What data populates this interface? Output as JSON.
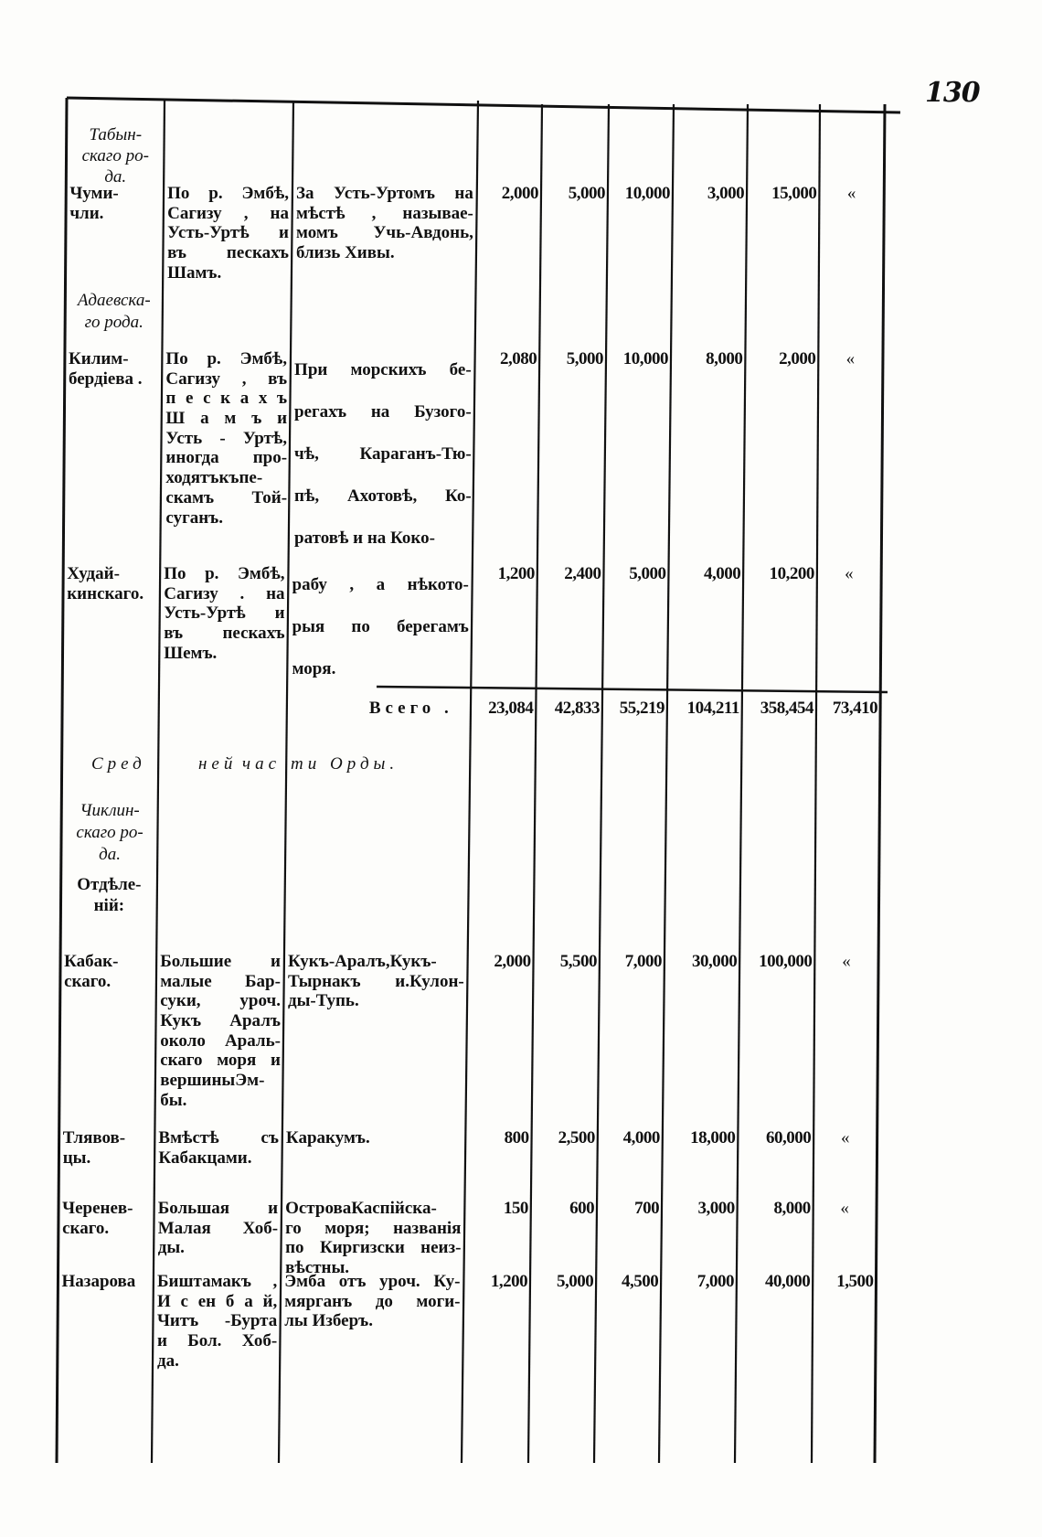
{
  "page_number": "130",
  "headings_top": {
    "tabyn": [
      "Табын-",
      "скаго ро-",
      "да."
    ],
    "adaev": [
      "Адаевска-",
      "го рода."
    ]
  },
  "rows_top": [
    {
      "name": [
        "Чуми-",
        "чли."
      ],
      "summer": [
        "По р. Эмбѣ,",
        "Сагизу , на",
        "Усть-Уртѣ и",
        "въ пескахъ",
        "Шамъ."
      ],
      "winter": [
        "За Усть-Уртомъ на",
        "мѣстѣ , называе-",
        "момъ Учь-Авдонь,",
        "близь Хивы."
      ],
      "values": [
        "2,000",
        "5,000",
        "10,000",
        "3,000",
        "15,000",
        "«"
      ]
    },
    {
      "name": [
        "Килим-",
        "бердіева ."
      ],
      "summer": [
        "По р. Эмбѣ,",
        "Сагизу , въ",
        "п е с к а х ъ",
        "Ш а м ъ и",
        "Усть - Уртѣ,",
        "иногда про-",
        "ходятъкъпе-",
        "скамъ Той-",
        "суганъ."
      ],
      "winter": [
        "При морскихъ бе-",
        "регахъ на Бузого-",
        "чѣ, Караганъ-Тю-",
        "пѣ, Ахотовѣ, Ко-",
        "ратовѣ и на Коко-"
      ],
      "values": [
        "2,080",
        "5,000",
        "10,000",
        "8,000",
        "2,000",
        "«"
      ]
    },
    {
      "name": [
        "Худай-",
        "кинскаго."
      ],
      "summer": [
        "По р. Эмбѣ,",
        "Сагизу . на",
        "Усть-Уртѣ и",
        "въ пескахъ",
        "Шемъ."
      ],
      "winter": [
        "рабу , а нѣкото-",
        "рыя по берегамъ",
        "моря."
      ],
      "values": [
        "1,200",
        "2,400",
        "5,000",
        "4,000",
        "10,200",
        "«"
      ]
    }
  ],
  "total": {
    "label": "Всего .",
    "values": [
      "23,084",
      "42,833",
      "55,219",
      "104,211",
      "358,454",
      "73,410"
    ]
  },
  "section_middle": [
    "Сред",
    "ней",
    "час",
    "ти Орды."
  ],
  "headings_middle": {
    "chiklin": [
      "Чиклин-",
      "скаго ро-",
      "да."
    ],
    "otdeleniy": [
      "Отдѣле-",
      "ній:"
    ]
  },
  "rows_bottom": [
    {
      "name": [
        "Кабак-",
        "скаго."
      ],
      "summer": [
        "Большие и",
        "малые Бар-",
        "суки, уроч.",
        "Кукъ Аралъ",
        "около Араль-",
        "скаго моря и",
        "вершиныЭм-",
        "бы."
      ],
      "winter": [
        "Кукъ-Аралъ,Кукъ-",
        "Тырнакъ и.Кулон-",
        "ды-Тупь."
      ],
      "values": [
        "2,000",
        "5,500",
        "7,000",
        "30,000",
        "100,000",
        "«"
      ]
    },
    {
      "name": [
        "Тлявов-",
        "цы."
      ],
      "summer": [
        "Вмѣстѣ съ",
        "Кабакцами."
      ],
      "winter": [
        "Каракумъ."
      ],
      "values": [
        "800",
        "2,500",
        "4,000",
        "18,000",
        "60,000",
        "«"
      ]
    },
    {
      "name": [
        "Черенев-",
        "скаго."
      ],
      "summer": [
        "Большая и",
        "Малая Хоб-",
        "ды."
      ],
      "winter": [
        "ОстроваКаспійска-",
        "го моря; названія",
        "по Киргизски неиз-",
        "вѣстны."
      ],
      "values": [
        "150",
        "600",
        "700",
        "3,000",
        "8,000",
        "«"
      ]
    },
    {
      "name": [
        "Назарова"
      ],
      "summer": [
        "Биштамакъ ,",
        "И с ен б а й,",
        "Читъ -Бурта",
        "и Бол. Хоб-",
        "да."
      ],
      "winter": [
        "Эмба отъ уроч. Ку-",
        "мярганъ до моги-",
        "лы Изберъ."
      ],
      "values": [
        "1,200",
        "5,000",
        "4,500",
        "7,000",
        "40,000",
        "1,500"
      ]
    }
  ]
}
